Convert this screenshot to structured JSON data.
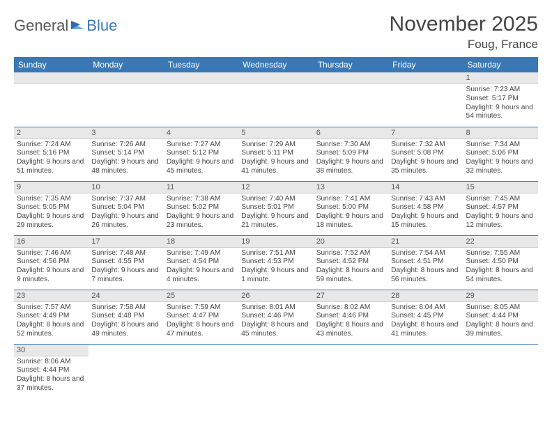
{
  "branding": {
    "word1": "General",
    "word2": "Blue",
    "color_general": "#555555",
    "color_blue": "#3a78b5"
  },
  "header": {
    "month_title": "November 2025",
    "location": "Foug, France"
  },
  "styling": {
    "header_bg": "#3a78b5",
    "header_text": "#ffffff",
    "daynum_bg": "#e8e8e8",
    "cell_border": "#3a78b5",
    "body_fontsize": 10.2,
    "daynum_fontsize": 11,
    "weekday_fontsize": 12
  },
  "weekdays": [
    "Sunday",
    "Monday",
    "Tuesday",
    "Wednesday",
    "Thursday",
    "Friday",
    "Saturday"
  ],
  "weeks": [
    [
      null,
      null,
      null,
      null,
      null,
      null,
      {
        "n": "1",
        "sr": "Sunrise: 7:23 AM",
        "ss": "Sunset: 5:17 PM",
        "dl": "Daylight: 9 hours and 54 minutes."
      }
    ],
    [
      {
        "n": "2",
        "sr": "Sunrise: 7:24 AM",
        "ss": "Sunset: 5:16 PM",
        "dl": "Daylight: 9 hours and 51 minutes."
      },
      {
        "n": "3",
        "sr": "Sunrise: 7:26 AM",
        "ss": "Sunset: 5:14 PM",
        "dl": "Daylight: 9 hours and 48 minutes."
      },
      {
        "n": "4",
        "sr": "Sunrise: 7:27 AM",
        "ss": "Sunset: 5:12 PM",
        "dl": "Daylight: 9 hours and 45 minutes."
      },
      {
        "n": "5",
        "sr": "Sunrise: 7:29 AM",
        "ss": "Sunset: 5:11 PM",
        "dl": "Daylight: 9 hours and 41 minutes."
      },
      {
        "n": "6",
        "sr": "Sunrise: 7:30 AM",
        "ss": "Sunset: 5:09 PM",
        "dl": "Daylight: 9 hours and 38 minutes."
      },
      {
        "n": "7",
        "sr": "Sunrise: 7:32 AM",
        "ss": "Sunset: 5:08 PM",
        "dl": "Daylight: 9 hours and 35 minutes."
      },
      {
        "n": "8",
        "sr": "Sunrise: 7:34 AM",
        "ss": "Sunset: 5:06 PM",
        "dl": "Daylight: 9 hours and 32 minutes."
      }
    ],
    [
      {
        "n": "9",
        "sr": "Sunrise: 7:35 AM",
        "ss": "Sunset: 5:05 PM",
        "dl": "Daylight: 9 hours and 29 minutes."
      },
      {
        "n": "10",
        "sr": "Sunrise: 7:37 AM",
        "ss": "Sunset: 5:04 PM",
        "dl": "Daylight: 9 hours and 26 minutes."
      },
      {
        "n": "11",
        "sr": "Sunrise: 7:38 AM",
        "ss": "Sunset: 5:02 PM",
        "dl": "Daylight: 9 hours and 23 minutes."
      },
      {
        "n": "12",
        "sr": "Sunrise: 7:40 AM",
        "ss": "Sunset: 5:01 PM",
        "dl": "Daylight: 9 hours and 21 minutes."
      },
      {
        "n": "13",
        "sr": "Sunrise: 7:41 AM",
        "ss": "Sunset: 5:00 PM",
        "dl": "Daylight: 9 hours and 18 minutes."
      },
      {
        "n": "14",
        "sr": "Sunrise: 7:43 AM",
        "ss": "Sunset: 4:58 PM",
        "dl": "Daylight: 9 hours and 15 minutes."
      },
      {
        "n": "15",
        "sr": "Sunrise: 7:45 AM",
        "ss": "Sunset: 4:57 PM",
        "dl": "Daylight: 9 hours and 12 minutes."
      }
    ],
    [
      {
        "n": "16",
        "sr": "Sunrise: 7:46 AM",
        "ss": "Sunset: 4:56 PM",
        "dl": "Daylight: 9 hours and 9 minutes."
      },
      {
        "n": "17",
        "sr": "Sunrise: 7:48 AM",
        "ss": "Sunset: 4:55 PM",
        "dl": "Daylight: 9 hours and 7 minutes."
      },
      {
        "n": "18",
        "sr": "Sunrise: 7:49 AM",
        "ss": "Sunset: 4:54 PM",
        "dl": "Daylight: 9 hours and 4 minutes."
      },
      {
        "n": "19",
        "sr": "Sunrise: 7:51 AM",
        "ss": "Sunset: 4:53 PM",
        "dl": "Daylight: 9 hours and 1 minute."
      },
      {
        "n": "20",
        "sr": "Sunrise: 7:52 AM",
        "ss": "Sunset: 4:52 PM",
        "dl": "Daylight: 8 hours and 59 minutes."
      },
      {
        "n": "21",
        "sr": "Sunrise: 7:54 AM",
        "ss": "Sunset: 4:51 PM",
        "dl": "Daylight: 8 hours and 56 minutes."
      },
      {
        "n": "22",
        "sr": "Sunrise: 7:55 AM",
        "ss": "Sunset: 4:50 PM",
        "dl": "Daylight: 8 hours and 54 minutes."
      }
    ],
    [
      {
        "n": "23",
        "sr": "Sunrise: 7:57 AM",
        "ss": "Sunset: 4:49 PM",
        "dl": "Daylight: 8 hours and 52 minutes."
      },
      {
        "n": "24",
        "sr": "Sunrise: 7:58 AM",
        "ss": "Sunset: 4:48 PM",
        "dl": "Daylight: 8 hours and 49 minutes."
      },
      {
        "n": "25",
        "sr": "Sunrise: 7:59 AM",
        "ss": "Sunset: 4:47 PM",
        "dl": "Daylight: 8 hours and 47 minutes."
      },
      {
        "n": "26",
        "sr": "Sunrise: 8:01 AM",
        "ss": "Sunset: 4:46 PM",
        "dl": "Daylight: 8 hours and 45 minutes."
      },
      {
        "n": "27",
        "sr": "Sunrise: 8:02 AM",
        "ss": "Sunset: 4:46 PM",
        "dl": "Daylight: 8 hours and 43 minutes."
      },
      {
        "n": "28",
        "sr": "Sunrise: 8:04 AM",
        "ss": "Sunset: 4:45 PM",
        "dl": "Daylight: 8 hours and 41 minutes."
      },
      {
        "n": "29",
        "sr": "Sunrise: 8:05 AM",
        "ss": "Sunset: 4:44 PM",
        "dl": "Daylight: 8 hours and 39 minutes."
      }
    ],
    [
      {
        "n": "30",
        "sr": "Sunrise: 8:06 AM",
        "ss": "Sunset: 4:44 PM",
        "dl": "Daylight: 8 hours and 37 minutes."
      },
      null,
      null,
      null,
      null,
      null,
      null
    ]
  ]
}
